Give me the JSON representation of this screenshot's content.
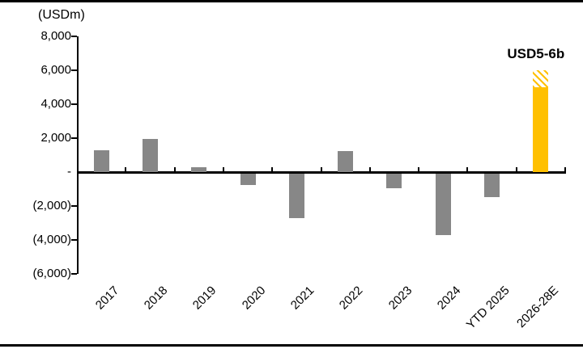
{
  "frame": {
    "background": "#ffffff",
    "border_color": "#000000"
  },
  "chart_data": {
    "type": "bar",
    "title": "(USDm)",
    "categories": [
      "2017",
      "2018",
      "2019",
      "2020",
      "2021",
      "2022",
      "2023",
      "2024",
      "YTD 2025",
      "2026-28E"
    ],
    "values": [
      1300,
      1950,
      300,
      -700,
      -2650,
      1250,
      -900,
      -3650,
      -1400,
      5000
    ],
    "hatched_extension": {
      "category": "2026-28E",
      "from": 5000,
      "to": 6000
    },
    "annotation": {
      "text": "USD5-6b",
      "category": "2026-28E"
    },
    "ylim": [
      -6000,
      8000
    ],
    "ytick_interval": 2000,
    "ytick_labels": [
      "8,000",
      "6,000",
      "4,000",
      "2,000",
      "-",
      "(2,000)",
      "(4,000)",
      "(6,000)"
    ],
    "grid": false,
    "legend": false,
    "colors": {
      "bar_default": "#878787",
      "bar_highlight": "#ffc000",
      "axis": "#000000"
    },
    "highlight_category": "2026-28E"
  }
}
